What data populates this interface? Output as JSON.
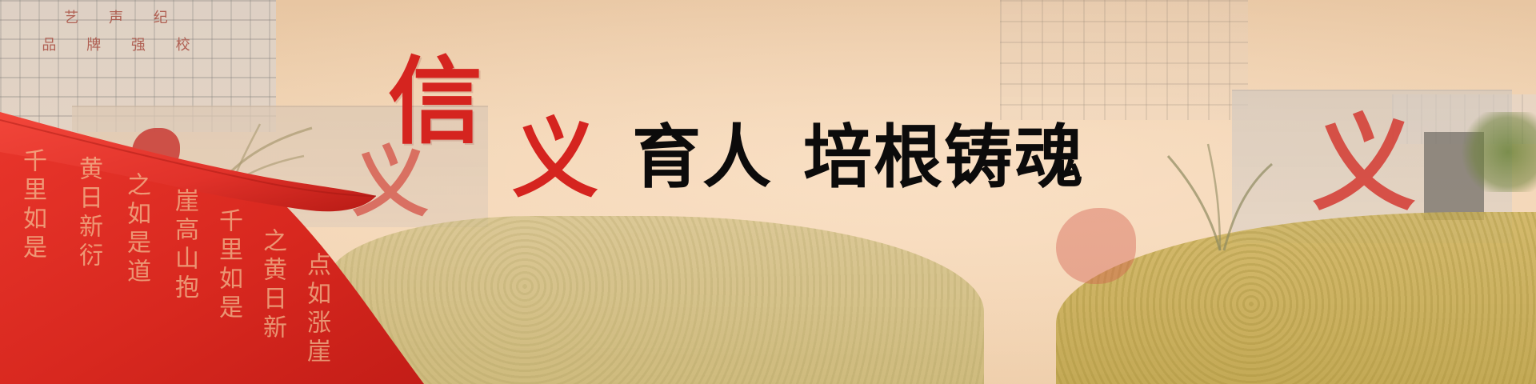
{
  "banner": {
    "headline": {
      "xin": "信",
      "yi": "义",
      "rest_part1": "育人",
      "rest_part2": "培根铸魂"
    },
    "building_sign_lines": [
      "艺 声 纪",
      "品 牌 强 校"
    ],
    "colors": {
      "accent_red": "#d5241f",
      "headline_black": "#0c0b0b",
      "background_peach": "#f1d2ad"
    },
    "calligraphy_columns": [
      "千里如是",
      "黄日新衍",
      "之如是道",
      "崖高山抱",
      "千里如是",
      "之黄日新",
      "点如涨崖"
    ],
    "sculpture_chars": [
      "义",
      "义"
    ]
  }
}
